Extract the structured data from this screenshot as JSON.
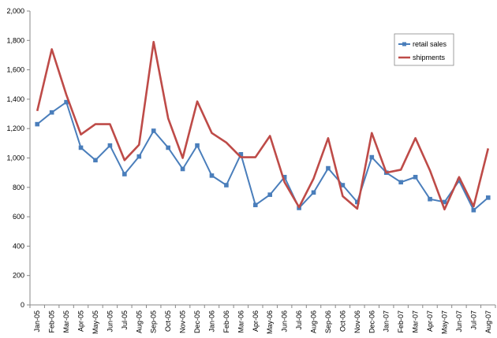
{
  "chart_data": {
    "type": "line",
    "title": "",
    "xlabel": "",
    "ylabel": "",
    "ylim": [
      0,
      2000
    ],
    "yticks": [
      0,
      200,
      400,
      600,
      800,
      1000,
      1200,
      1400,
      1600,
      1800,
      2000
    ],
    "ytick_labels": [
      "0",
      "200",
      "400",
      "600",
      "800",
      "1,000",
      "1,200",
      "1,400",
      "1,600",
      "1,800",
      "2,000"
    ],
    "grid": false,
    "legend_position": "top-right",
    "categories": [
      "Jan-05",
      "Feb-05",
      "Mar-05",
      "Apr-05",
      "May-05",
      "Jun-05",
      "Jul-05",
      "Aug-05",
      "Sep-05",
      "Oct-05",
      "Nov-05",
      "Dec-05",
      "Jan-06",
      "Feb-06",
      "Mar-06",
      "Apr-06",
      "May-06",
      "Jun-06",
      "Jul-06",
      "Aug-06",
      "Sep-06",
      "Oct-06",
      "Nov-06",
      "Dec-06",
      "Jan-07",
      "Feb-07",
      "Mar-07",
      "Apr-07",
      "May-07",
      "Jun-07",
      "Jul-07",
      "Aug-07"
    ],
    "series": [
      {
        "name": "retail sales",
        "color": "#4a7ebb",
        "marker": "square",
        "values": [
          1230,
          1310,
          1380,
          1070,
          985,
          1085,
          890,
          1010,
          1185,
          1070,
          925,
          1085,
          880,
          815,
          1025,
          680,
          750,
          870,
          660,
          765,
          930,
          815,
          700,
          1005,
          900,
          835,
          870,
          720,
          700,
          845,
          645,
          730
        ]
      },
      {
        "name": "shipments",
        "color": "#be4b48",
        "marker": "none",
        "values": [
          1320,
          1740,
          1430,
          1160,
          1230,
          1230,
          985,
          1090,
          1790,
          1270,
          1000,
          1385,
          1170,
          1105,
          1005,
          1005,
          1150,
          835,
          665,
          860,
          1135,
          740,
          655,
          1170,
          900,
          920,
          1135,
          915,
          650,
          870,
          670,
          1065
        ]
      }
    ]
  }
}
